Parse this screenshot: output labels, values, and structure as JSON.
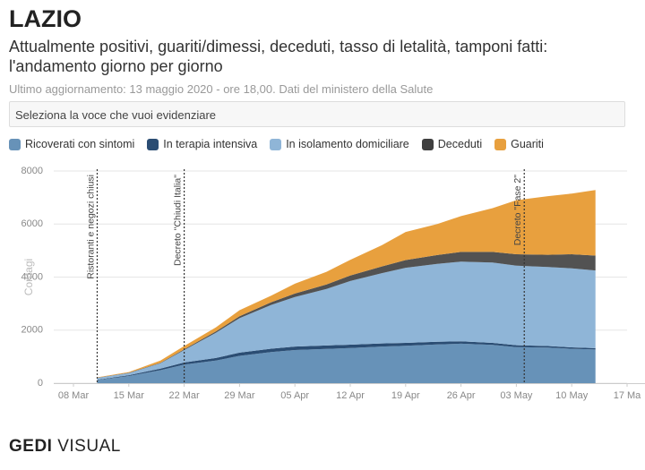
{
  "header": {
    "title": "LAZIO",
    "subtitle": [
      "Attualmente positivi, guariti/dimessi, deceduti, tasso di letalità, tamponi fatti:",
      "l'andamento giorno per giorno"
    ],
    "updated": "Ultimo aggiornamento: 13 maggio 2020 - ore 18,00. Dati del ministero della Salute",
    "select": "Seleziona la voce che vuoi evidenziare"
  },
  "chart_data": {
    "type": "stacked_area",
    "y_label": "Contagi",
    "x": [
      "03-11",
      "03-15",
      "03-19",
      "03-22",
      "03-26",
      "03-29",
      "04-02",
      "04-05",
      "04-09",
      "04-12",
      "04-16",
      "04-19",
      "04-23",
      "04-26",
      "04-30",
      "05-03",
      "05-07",
      "05-10",
      "05-13"
    ],
    "series": [
      {
        "name": "Ricoverati con sintomi",
        "color": "#6792b8",
        "values": [
          115,
          270,
          490,
          700,
          850,
          1030,
          1170,
          1250,
          1290,
          1325,
          1380,
          1410,
          1460,
          1490,
          1440,
          1360,
          1340,
          1295,
          1270
        ]
      },
      {
        "name": "In terapia intensiva",
        "color": "#2b4d73",
        "values": [
          15,
          30,
          60,
          80,
          100,
          120,
          130,
          130,
          130,
          125,
          120,
          110,
          100,
          90,
          80,
          70,
          60,
          55,
          50
        ]
      },
      {
        "name": "In isolamento domiciliare",
        "color": "#8fb5d7",
        "values": [
          70,
          80,
          200,
          470,
          950,
          1300,
          1650,
          1870,
          2130,
          2400,
          2650,
          2830,
          2940,
          3000,
          3030,
          3000,
          2980,
          2980,
          2930
        ]
      },
      {
        "name": "Deceduti",
        "color": "#3f3f3f",
        "values": [
          5,
          10,
          20,
          30,
          50,
          70,
          100,
          130,
          170,
          210,
          250,
          290,
          330,
          370,
          400,
          430,
          460,
          530,
          560
        ]
      },
      {
        "name": "Guariti",
        "color": "#e8a03e",
        "values": [
          15,
          30,
          80,
          120,
          150,
          230,
          250,
          370,
          480,
          590,
          800,
          1060,
          1170,
          1350,
          1650,
          2040,
          2210,
          2290,
          2470
        ]
      }
    ],
    "xlim": [
      "03-08",
      "05-17"
    ],
    "xticks": [
      {
        "value": "03-08",
        "label": "08 Mar"
      },
      {
        "value": "03-15",
        "label": "15 Mar"
      },
      {
        "value": "03-22",
        "label": "22 Mar"
      },
      {
        "value": "03-29",
        "label": "29 Mar"
      },
      {
        "value": "04-05",
        "label": "05 Apr"
      },
      {
        "value": "04-12",
        "label": "12 Apr"
      },
      {
        "value": "04-19",
        "label": "19 Apr"
      },
      {
        "value": "04-26",
        "label": "26 Apr"
      },
      {
        "value": "05-03",
        "label": "03 May"
      },
      {
        "value": "05-10",
        "label": "10 May"
      },
      {
        "value": "05-17",
        "label": "17 Ma"
      }
    ],
    "ylim": [
      0,
      8000
    ],
    "yticks": [
      0,
      2000,
      4000,
      6000,
      8000
    ],
    "grid": true,
    "annotations": [
      {
        "x": "03-11",
        "text": "Ristoranti e negozi chiusi"
      },
      {
        "x": "03-22",
        "text": "Decreto \"Chiudi Italia\""
      },
      {
        "x": "05-04",
        "text": "Decreto \"Fase 2\""
      }
    ]
  },
  "footer": {
    "brand": "GEDI",
    "label": "VISUAL"
  }
}
